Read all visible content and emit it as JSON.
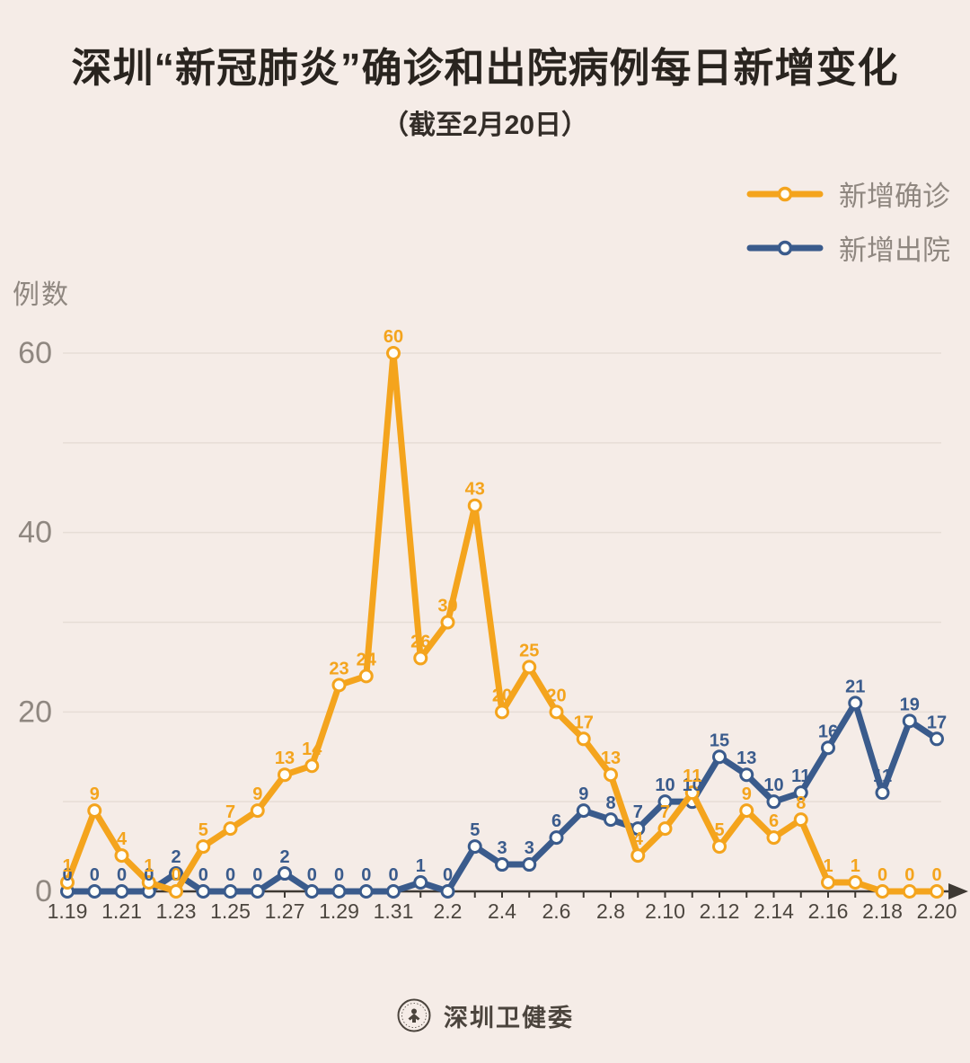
{
  "title": "深圳“新冠肺炎”确诊和出院病例每日新增变化",
  "subtitle": "（截至2月20日）",
  "y_axis_title": "例数",
  "legend": [
    {
      "label": "新增确诊",
      "color": "#F4A41D"
    },
    {
      "label": "新增出院",
      "color": "#3A5B8C"
    }
  ],
  "footer": {
    "source": "深圳卫健委"
  },
  "colors": {
    "background": "#F5ECE7",
    "confirmed": "#F4A41D",
    "discharged": "#3A5B8C",
    "grid": "#E6DDD6",
    "axis": "#3E3933",
    "y_tick_text": "#8F8780",
    "x_tick_text": "#4C463F",
    "marker_fill": "#FFFEF9"
  },
  "chart_data": {
    "type": "line",
    "x": [
      "1.19",
      "1.20",
      "1.21",
      "1.22",
      "1.23",
      "1.24",
      "1.25",
      "1.26",
      "1.27",
      "1.28",
      "1.29",
      "1.30",
      "1.31",
      "2.1",
      "2.2",
      "2.3",
      "2.4",
      "2.5",
      "2.6",
      "2.7",
      "2.8",
      "2.9",
      "2.10",
      "2.11",
      "2.12",
      "2.13",
      "2.14",
      "2.15",
      "2.16",
      "2.17",
      "2.18",
      "2.19",
      "2.20"
    ],
    "x_tick_labels": [
      "1.19",
      "1.21",
      "1.23",
      "1.25",
      "1.27",
      "1.29",
      "1.31",
      "2.2",
      "2.4",
      "2.6",
      "2.8",
      "2.10",
      "2.12",
      "2.14",
      "2.16",
      "2.18",
      "2.20"
    ],
    "series": [
      {
        "name": "新增确诊",
        "color": "#F4A41D",
        "values": [
          1,
          9,
          4,
          1,
          0,
          5,
          7,
          9,
          13,
          14,
          23,
          24,
          60,
          26,
          30,
          43,
          20,
          25,
          20,
          17,
          13,
          4,
          7,
          11,
          5,
          9,
          6,
          8,
          1,
          1,
          0,
          0,
          0
        ]
      },
      {
        "name": "新增出院",
        "color": "#3A5B8C",
        "values": [
          0,
          0,
          0,
          0,
          2,
          0,
          0,
          0,
          2,
          0,
          0,
          0,
          0,
          1,
          0,
          5,
          3,
          3,
          6,
          9,
          8,
          7,
          10,
          10,
          15,
          13,
          10,
          11,
          16,
          21,
          11,
          19,
          17
        ]
      }
    ],
    "ylim": [
      0,
      60
    ],
    "yticks": [
      0,
      20,
      40,
      60
    ],
    "grid_interval": 10,
    "grid": true,
    "legend_position": "top-right",
    "data_labels": true
  }
}
